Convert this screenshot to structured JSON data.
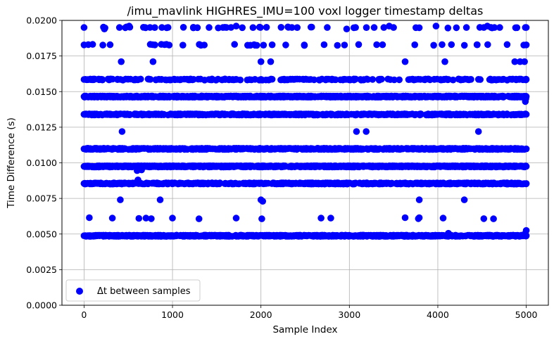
{
  "chart_data": {
    "type": "scatter",
    "title": "/imu_mavlink HIGHRES_IMU=100 voxl logger timestamp deltas",
    "xlabel": "Sample Index",
    "ylabel": "Time Difference (s)",
    "xlim": [
      -250,
      5250
    ],
    "ylim": [
      0,
      0.02
    ],
    "xticks": [
      0,
      1000,
      2000,
      3000,
      4000,
      5000
    ],
    "xtick_labels": [
      "0",
      "1000",
      "2000",
      "3000",
      "4000",
      "5000"
    ],
    "yticks": [
      0,
      0.0025,
      0.005,
      0.0075,
      0.01,
      0.0125,
      0.015,
      0.0175,
      0.02
    ],
    "ytick_labels": [
      "0.0000",
      "0.0025",
      "0.0050",
      "0.0075",
      "0.0100",
      "0.0125",
      "0.0150",
      "0.0175",
      "0.0200"
    ],
    "grid": true,
    "legend_position": "bottom-left",
    "series": [
      {
        "name": "Δt between samples",
        "color": "#0000ff",
        "sample_count": 5000,
        "dense_bands": [
          {
            "y": 0.00488,
            "x_range": [
              0,
              5000
            ],
            "density": "very dense"
          },
          {
            "y": 0.00855,
            "x_range": [
              0,
              5000
            ],
            "density": "dense"
          },
          {
            "y": 0.00975,
            "x_range": [
              0,
              5000
            ],
            "density": "very dense"
          },
          {
            "y": 0.01098,
            "x_range": [
              0,
              5000
            ],
            "density": "dense"
          },
          {
            "y": 0.0134,
            "x_range": [
              0,
              5000
            ],
            "density": "dense"
          },
          {
            "y": 0.01465,
            "x_range": [
              0,
              5000
            ],
            "density": "very dense"
          },
          {
            "y": 0.01585,
            "x_range": [
              0,
              5000
            ],
            "density": "medium"
          },
          {
            "y": 0.01828,
            "x_range": [
              0,
              5000
            ],
            "density": "sparse"
          },
          {
            "y": 0.0195,
            "x_range": [
              0,
              5000
            ],
            "density": "sparse"
          }
        ],
        "x": [
          60,
          320,
          620,
          700,
          760,
          1000,
          1300,
          1720,
          2010,
          2680,
          2790,
          3630,
          3780,
          3790,
          4060,
          4120,
          4520,
          4630,
          4990,
          5000,
          410,
          2000,
          2020,
          3790,
          4300,
          860,
          600,
          610,
          650,
          430,
          3080,
          3190,
          4460,
          4990,
          4995,
          420,
          780,
          2000,
          2110,
          3630,
          4080,
          4870,
          4930,
          4980,
          230,
          400,
          510,
          690,
          880,
          1570,
          1610,
          1720,
          2350,
          2750,
          2970,
          3070,
          3280,
          3390,
          3450,
          3500,
          3980,
          4520,
          4560,
          4640,
          4700,
          4990
        ],
        "y": [
          0.00615,
          0.00612,
          0.0061,
          0.00612,
          0.00608,
          0.00612,
          0.00607,
          0.00612,
          0.00607,
          0.00612,
          0.00612,
          0.00615,
          0.00608,
          0.00615,
          0.00612,
          0.00505,
          0.00608,
          0.00607,
          0.00505,
          0.00525,
          0.0074,
          0.0074,
          0.0073,
          0.0074,
          0.0074,
          0.0074,
          0.00945,
          0.0088,
          0.0095,
          0.0122,
          0.0122,
          0.0122,
          0.0122,
          0.0143,
          0.0145,
          0.0171,
          0.0171,
          0.0171,
          0.0171,
          0.0171,
          0.0171,
          0.0171,
          0.0171,
          0.0171,
          0.0194,
          0.0195,
          0.0196,
          0.0195,
          0.0195,
          0.0195,
          0.0195,
          0.0196,
          0.0195,
          0.0195,
          0.0194,
          0.0195,
          0.0195,
          0.0195,
          0.0196,
          0.0195,
          0.0196,
          0.0195,
          0.0196,
          0.0195,
          0.0195,
          0.0195
        ]
      }
    ]
  }
}
